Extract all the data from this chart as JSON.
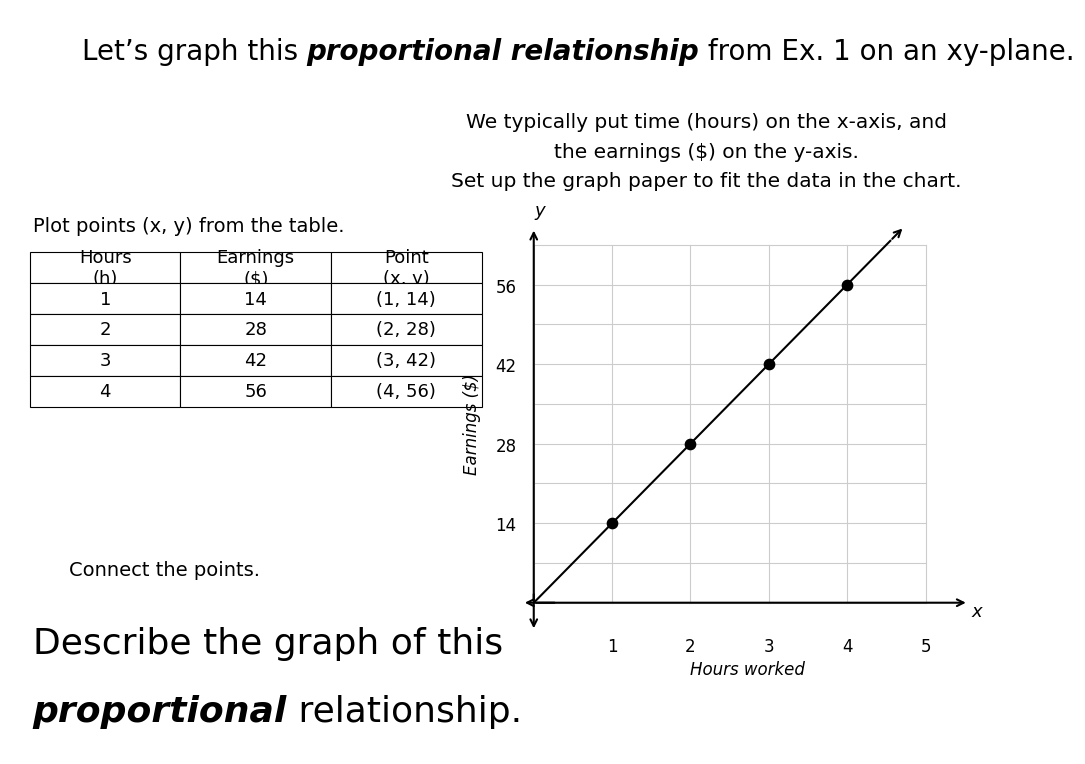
{
  "title_prefix": "Let’s graph this ",
  "title_bold": "proportional relationship",
  "title_suffix": " from Ex. 1 on an xy-plane.",
  "subtitle": "We typically put time (hours) on the x-axis, and\nthe earnings ($) on the y-axis.\nSet up the graph paper to fit the data in the chart.",
  "plot_points_text": "Plot points (x, y) from the table.",
  "connect_text": "Connect the points.",
  "bottom_line1": "Describe the graph of this",
  "bottom_bold": "proportional",
  "bottom_suffix": " relationship.",
  "table_headers": [
    "Hours\n(h)",
    "Earnings\n($)",
    "Point\n(x, y)"
  ],
  "table_data": [
    [
      "1",
      "14",
      "(1, 14)"
    ],
    [
      "2",
      "28",
      "(2, 28)"
    ],
    [
      "3",
      "42",
      "(3, 42)"
    ],
    [
      "4",
      "56",
      "(4, 56)"
    ]
  ],
  "x_data": [
    1,
    2,
    3,
    4
  ],
  "y_data": [
    14,
    28,
    42,
    56
  ],
  "x_label": "Hours worked",
  "y_label": "Earnings ($)",
  "x_axis_label": "x",
  "y_axis_label": "y",
  "y_ticks": [
    14,
    28,
    42,
    56
  ],
  "x_ticks": [
    1,
    2,
    3,
    4,
    5
  ],
  "background_color": "#ffffff",
  "line_color": "#000000",
  "point_color": "#000000",
  "grid_color": "#cccccc",
  "text_color": "#000000",
  "title_fontsize": 20,
  "subtitle_fontsize": 14.5,
  "body_fontsize": 14,
  "table_fontsize": 13,
  "bottom_fontsize": 26
}
